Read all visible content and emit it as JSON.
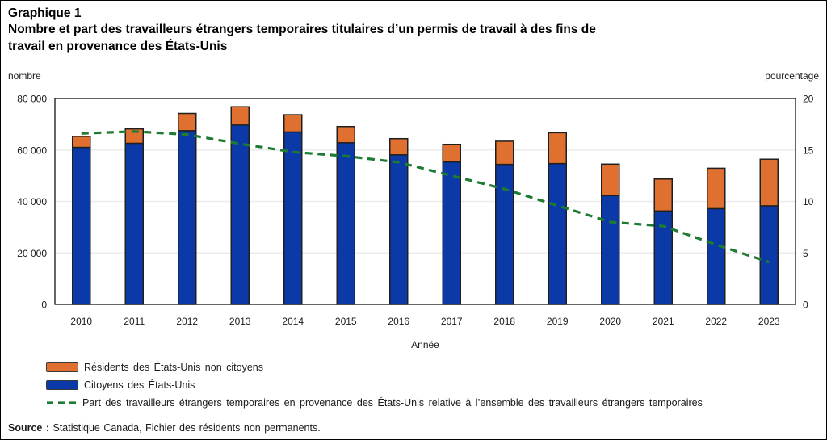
{
  "title": {
    "label": "Graphique 1",
    "line1": "Nombre et part des travailleurs étrangers temporaires titulaires d’un permis de travail à des fins de",
    "line2": "travail en provenance des États-Unis"
  },
  "legend": {
    "residents_label": "Résidents des États-Unis non citoyens",
    "citizens_label": "Citoyens des États-Unis",
    "share_label": "Part des travailleurs étrangers temporaires en provenance des États-Unis relative à l’ensemble des travailleurs étrangers temporaires"
  },
  "source": {
    "prefix": "Source :",
    "text": " Statistique Canada, Fichier des résidents non permanents."
  },
  "colors": {
    "citizens_blue": "#0b3aa8",
    "residents_orange": "#e0702f",
    "share_green": "#1e7b32",
    "bar_outline": "#1f1f1f",
    "gridline": "#ebebeb",
    "plot_border": "#000000"
  },
  "chart_data": {
    "type": "bar",
    "subtype": "stacked-bars-with-dashed-line-overlay",
    "title": "Nombre et part des travailleurs étrangers temporaires titulaires d’un permis de travail à des fins de travail en provenance des États-Unis",
    "categories": [
      "2010",
      "2011",
      "2012",
      "2013",
      "2014",
      "2015",
      "2016",
      "2017",
      "2018",
      "2019",
      "2020",
      "2021",
      "2022",
      "2023"
    ],
    "series": [
      {
        "name": "Citoyens des États-Unis",
        "color": "#0b3aa8",
        "axis": "left",
        "values": [
          61000,
          62600,
          67500,
          69700,
          67000,
          62800,
          58100,
          55300,
          54400,
          54700,
          42300,
          36300,
          37200,
          38300
        ]
      },
      {
        "name": "Résidents des États-Unis non citoyens",
        "color": "#e0702f",
        "axis": "left",
        "values": [
          4300,
          5600,
          6700,
          7100,
          6700,
          6300,
          6300,
          6900,
          9000,
          12000,
          12200,
          12400,
          15700,
          18100
        ]
      }
    ],
    "line_series": {
      "name": "Part des travailleurs étrangers temporaires en provenance des États-Unis relative à l’ensemble des travailleurs étrangers temporaires",
      "color": "#1e7b32",
      "style": "dashed",
      "axis": "right",
      "values": [
        16.6,
        16.8,
        16.5,
        15.6,
        14.8,
        14.4,
        13.8,
        12.5,
        11.2,
        9.6,
        8.0,
        7.6,
        5.8,
        4.1
      ]
    },
    "xlabel": "Année",
    "ylabel_left": "nombre",
    "ylabel_right": "pourcentage",
    "ylim_left": [
      0,
      80000
    ],
    "ylim_right": [
      0,
      20
    ],
    "yticks_left": [
      "0",
      "20 000",
      "40 000",
      "60 000",
      "80 000"
    ],
    "yticks_right": [
      "0",
      "5",
      "10",
      "15",
      "20"
    ],
    "grid": true,
    "legend_position": "bottom-left"
  }
}
